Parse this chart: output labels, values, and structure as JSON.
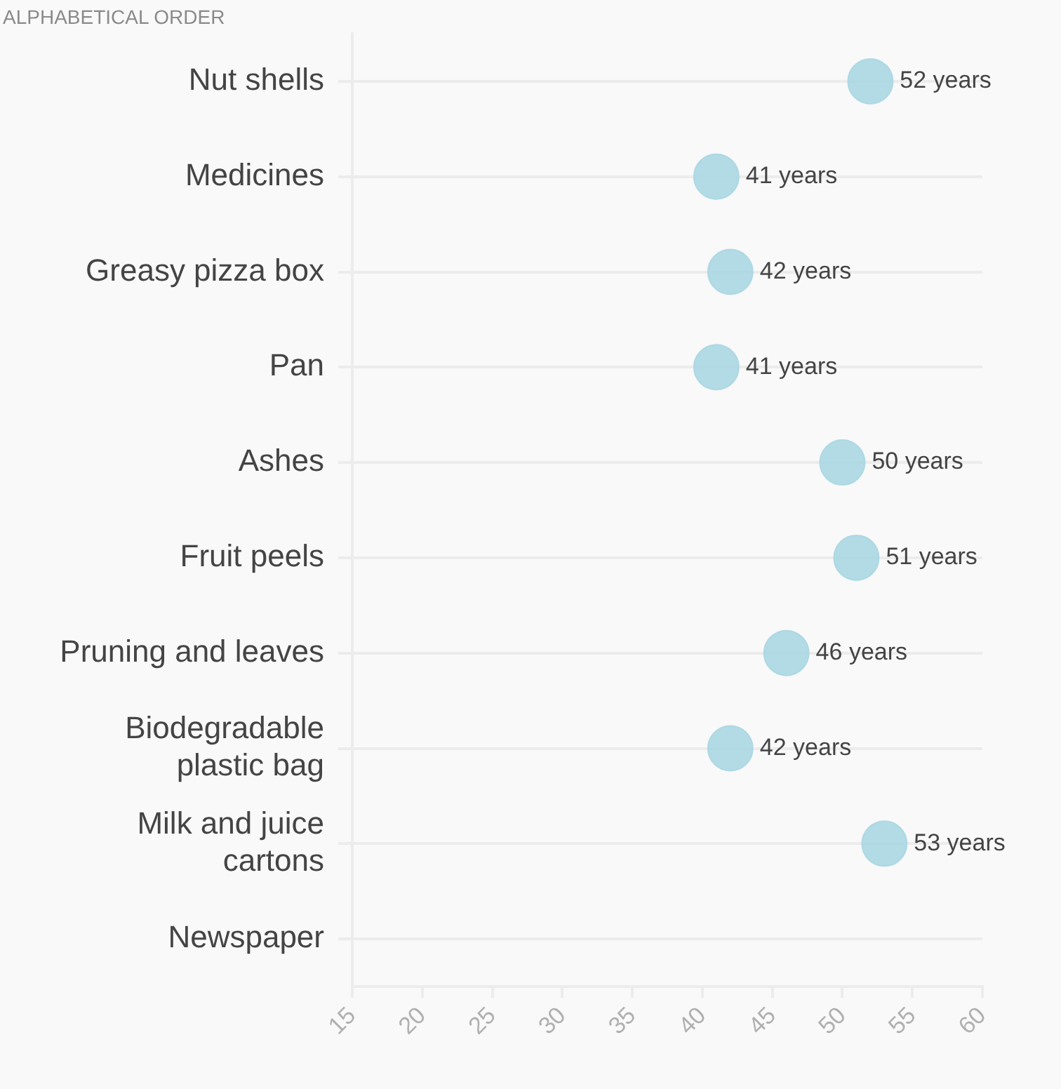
{
  "chart_data": {
    "type": "scatter",
    "orientation": "horizontal",
    "marker": "circle",
    "grid": "y",
    "categories": [
      "Nut shells",
      "Medicines",
      "Greasy pizza box",
      "Pan",
      "Ashes",
      "Fruit peels",
      "Pruning and leaves",
      "Biodegradable plastic bag",
      "Milk and juice cartons",
      "Newspaper"
    ],
    "values": [
      52,
      41,
      42,
      41,
      50,
      51,
      46,
      42,
      53,
      null
    ],
    "value_labels": [
      "52 years",
      "41 years",
      "42 years",
      "41 years",
      "50 years",
      "51 years",
      "46 years",
      "42 years",
      "53 years",
      null
    ],
    "color": "#a9d6e2",
    "xlim": [
      15,
      60
    ],
    "xticks": [
      15,
      20,
      25,
      30,
      35,
      40,
      45,
      50,
      55,
      60
    ],
    "annotations": [
      "ALPHABETICAL ORDER"
    ]
  }
}
